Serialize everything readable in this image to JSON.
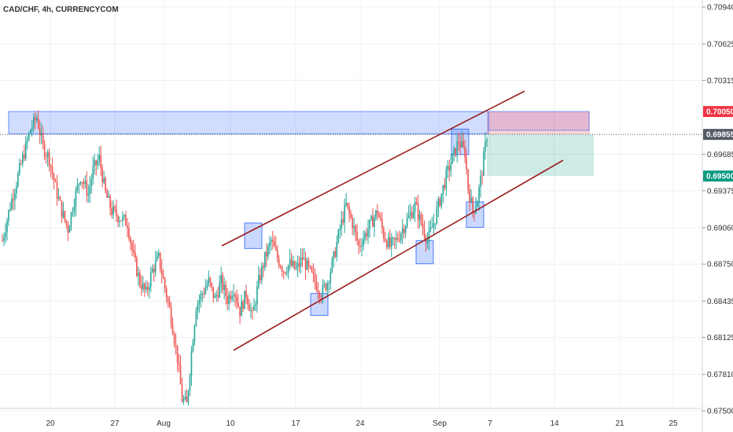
{
  "header": {
    "symbol": "CAD/CHF, 4h, CURRENCYCOM"
  },
  "chart_data": {
    "type": "candlestick",
    "ylim": [
      0.675,
      0.7094
    ],
    "y_ticks": [
      "0.70940",
      "0.70625",
      "0.70315",
      "0.69685",
      "0.69375",
      "0.69060",
      "0.68750",
      "0.68435",
      "0.68125",
      "0.67810",
      "0.67500"
    ],
    "x_ticks": [
      "20",
      "27",
      "Aug",
      "10",
      "17",
      "24",
      "Sep",
      "7",
      "14",
      "21",
      "25"
    ],
    "price_labels": [
      {
        "text": "0.70050",
        "value": 0.7005,
        "color": "#f23645"
      },
      {
        "text": "0.69855",
        "value": 0.69855,
        "color": "#555a64"
      },
      {
        "text": "0.69500",
        "value": 0.695,
        "color": "#089981"
      }
    ],
    "current_price": 0.69855,
    "colors": {
      "up": "#26a69a",
      "down": "#ef5350",
      "trend": "#9b1c1c",
      "zone": "#2962ff",
      "stop": "#f23645",
      "target": "#089981"
    },
    "price_path": [
      [
        0,
        0.6895
      ],
      [
        5,
        0.6925
      ],
      [
        12,
        0.696
      ],
      [
        18,
        0.699
      ],
      [
        22,
        0.7
      ],
      [
        26,
        0.6975
      ],
      [
        30,
        0.6965
      ],
      [
        34,
        0.694
      ],
      [
        38,
        0.692
      ],
      [
        42,
        0.6905
      ],
      [
        46,
        0.693
      ],
      [
        50,
        0.695
      ],
      [
        55,
        0.6935
      ],
      [
        58,
        0.6955
      ],
      [
        62,
        0.6965
      ],
      [
        66,
        0.6935
      ],
      [
        70,
        0.692
      ],
      [
        75,
        0.6915
      ],
      [
        80,
        0.691
      ],
      [
        84,
        0.688
      ],
      [
        88,
        0.686
      ],
      [
        92,
        0.685
      ],
      [
        96,
        0.687
      ],
      [
        100,
        0.688
      ],
      [
        104,
        0.6855
      ],
      [
        108,
        0.683
      ],
      [
        112,
        0.6795
      ],
      [
        115,
        0.676
      ],
      [
        118,
        0.6755
      ],
      [
        121,
        0.68
      ],
      [
        124,
        0.684
      ],
      [
        128,
        0.685
      ],
      [
        132,
        0.686
      ],
      [
        136,
        0.6845
      ],
      [
        140,
        0.686
      ],
      [
        144,
        0.6845
      ],
      [
        148,
        0.6855
      ],
      [
        152,
        0.6835
      ],
      [
        156,
        0.685
      ],
      [
        160,
        0.683
      ],
      [
        164,
        0.686
      ],
      [
        168,
        0.688
      ],
      [
        172,
        0.6895
      ],
      [
        176,
        0.688
      ],
      [
        180,
        0.687
      ],
      [
        184,
        0.6875
      ],
      [
        188,
        0.687
      ],
      [
        192,
        0.688
      ],
      [
        196,
        0.687
      ],
      [
        200,
        0.686
      ],
      [
        204,
        0.685
      ],
      [
        208,
        0.686
      ],
      [
        212,
        0.688
      ],
      [
        216,
        0.6905
      ],
      [
        220,
        0.6925
      ],
      [
        224,
        0.691
      ],
      [
        228,
        0.689
      ],
      [
        232,
        0.69
      ],
      [
        236,
        0.691
      ],
      [
        240,
        0.692
      ],
      [
        244,
        0.69
      ],
      [
        248,
        0.689
      ],
      [
        252,
        0.6895
      ],
      [
        256,
        0.6905
      ],
      [
        260,
        0.6915
      ],
      [
        264,
        0.6925
      ],
      [
        268,
        0.691
      ],
      [
        272,
        0.6895
      ],
      [
        276,
        0.691
      ],
      [
        280,
        0.693
      ],
      [
        284,
        0.695
      ],
      [
        288,
        0.6965
      ],
      [
        292,
        0.698
      ],
      [
        296,
        0.697
      ],
      [
        298,
        0.694
      ],
      [
        301,
        0.692
      ],
      [
        304,
        0.693
      ],
      [
        307,
        0.6955
      ],
      [
        310,
        0.6985
      ]
    ]
  }
}
